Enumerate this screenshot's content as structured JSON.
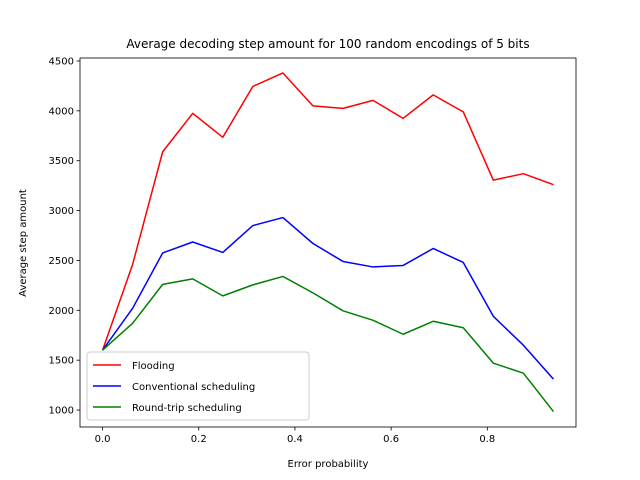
{
  "chart_data": {
    "type": "line",
    "title": "Average decoding step amount for 100 random encodings of 5 bits",
    "xlabel": "Error probability",
    "ylabel": "Average step amount",
    "xlim": [
      -0.046875,
      0.984375
    ],
    "ylim": [
      830,
      4530
    ],
    "xticks": [
      0.0,
      0.2,
      0.4,
      0.6,
      0.8
    ],
    "xtick_labels": [
      "0.0",
      "0.2",
      "0.4",
      "0.6",
      "0.8"
    ],
    "yticks": [
      1000,
      1500,
      2000,
      2500,
      3000,
      3500,
      4000,
      4500
    ],
    "ytick_labels": [
      "1000",
      "1500",
      "2000",
      "2500",
      "3000",
      "3500",
      "4000",
      "4500"
    ],
    "grid": false,
    "legend_position": "lower-left",
    "x": [
      0.0,
      0.0625,
      0.125,
      0.1875,
      0.25,
      0.3125,
      0.375,
      0.4375,
      0.5,
      0.5625,
      0.625,
      0.6875,
      0.75,
      0.8125,
      0.875,
      0.9375
    ],
    "series": [
      {
        "name": "Flooding",
        "color": "#ff0000",
        "values": [
          1600,
          2460,
          3590,
          3975,
          3735,
          4245,
          4380,
          4050,
          4025,
          4105,
          3925,
          4160,
          3990,
          3305,
          3370,
          3260
        ]
      },
      {
        "name": "Conventional scheduling",
        "color": "#0000ff",
        "values": [
          1600,
          2020,
          2575,
          2685,
          2580,
          2850,
          2930,
          2670,
          2490,
          2435,
          2450,
          2620,
          2480,
          1940,
          1650,
          1310
        ]
      },
      {
        "name": "Round-trip scheduling",
        "color": "#008000",
        "values": [
          1600,
          1870,
          2260,
          2315,
          2145,
          2255,
          2340,
          2175,
          1995,
          1900,
          1760,
          1890,
          1825,
          1470,
          1370,
          985
        ]
      }
    ]
  }
}
